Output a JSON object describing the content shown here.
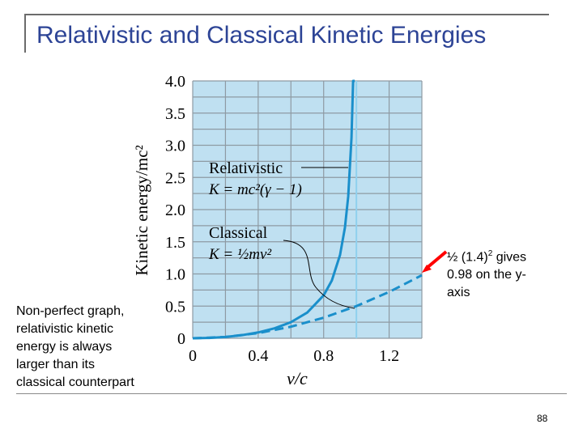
{
  "slide": {
    "title": "Relativistic and Classical Kinetic Energies",
    "page_number": "88"
  },
  "notes": {
    "left": "Non-perfect graph, relativistic kinetic energy is always larger than its classical counterpart",
    "right_prefix": "½ (1.4)",
    "right_superscript": "2",
    "right_suffix": " gives 0.98 on the y-axis"
  },
  "colors": {
    "plot_background": "#bfe0f1",
    "grid": "#8e9aa3",
    "curve": "#1a8fcb",
    "title": "#2d4496",
    "arrow": "#ff0000"
  },
  "chart_data": {
    "type": "line",
    "xlabel": "v/c",
    "ylabel": "Kinetic energy/mc²",
    "xlim": [
      0,
      1.4
    ],
    "ylim": [
      0,
      4.0
    ],
    "x_ticks": [
      "0",
      "0.4",
      "0.8",
      "1.2"
    ],
    "y_ticks": [
      "0",
      "0.5",
      "1.0",
      "1.5",
      "2.0",
      "2.5",
      "3.0",
      "3.5",
      "4.0"
    ],
    "grid": true,
    "vertical_marker_x": 1.0,
    "series": [
      {
        "name": "Relativistic",
        "formula": "K = mc²(γ − 1)",
        "style": "solid",
        "x": [
          0,
          0.1,
          0.2,
          0.3,
          0.4,
          0.5,
          0.6,
          0.7,
          0.8,
          0.85,
          0.9,
          0.93,
          0.95,
          0.97,
          0.98,
          0.99
        ],
        "values": [
          0,
          0.005,
          0.021,
          0.048,
          0.091,
          0.155,
          0.25,
          0.4,
          0.667,
          0.898,
          1.294,
          1.721,
          2.203,
          3.113,
          4.0,
          4.0
        ]
      },
      {
        "name": "Classical",
        "formula": "K = ½mv²",
        "style": "dashed",
        "x": [
          0,
          0.2,
          0.4,
          0.6,
          0.8,
          1.0,
          1.2,
          1.4
        ],
        "values": [
          0,
          0.02,
          0.08,
          0.18,
          0.32,
          0.5,
          0.72,
          0.98
        ]
      }
    ],
    "annotations": [
      {
        "label": "Relativistic",
        "formula": "K = mc²(γ − 1)"
      },
      {
        "label": "Classical",
        "formula": "K = ½mv²"
      }
    ]
  }
}
